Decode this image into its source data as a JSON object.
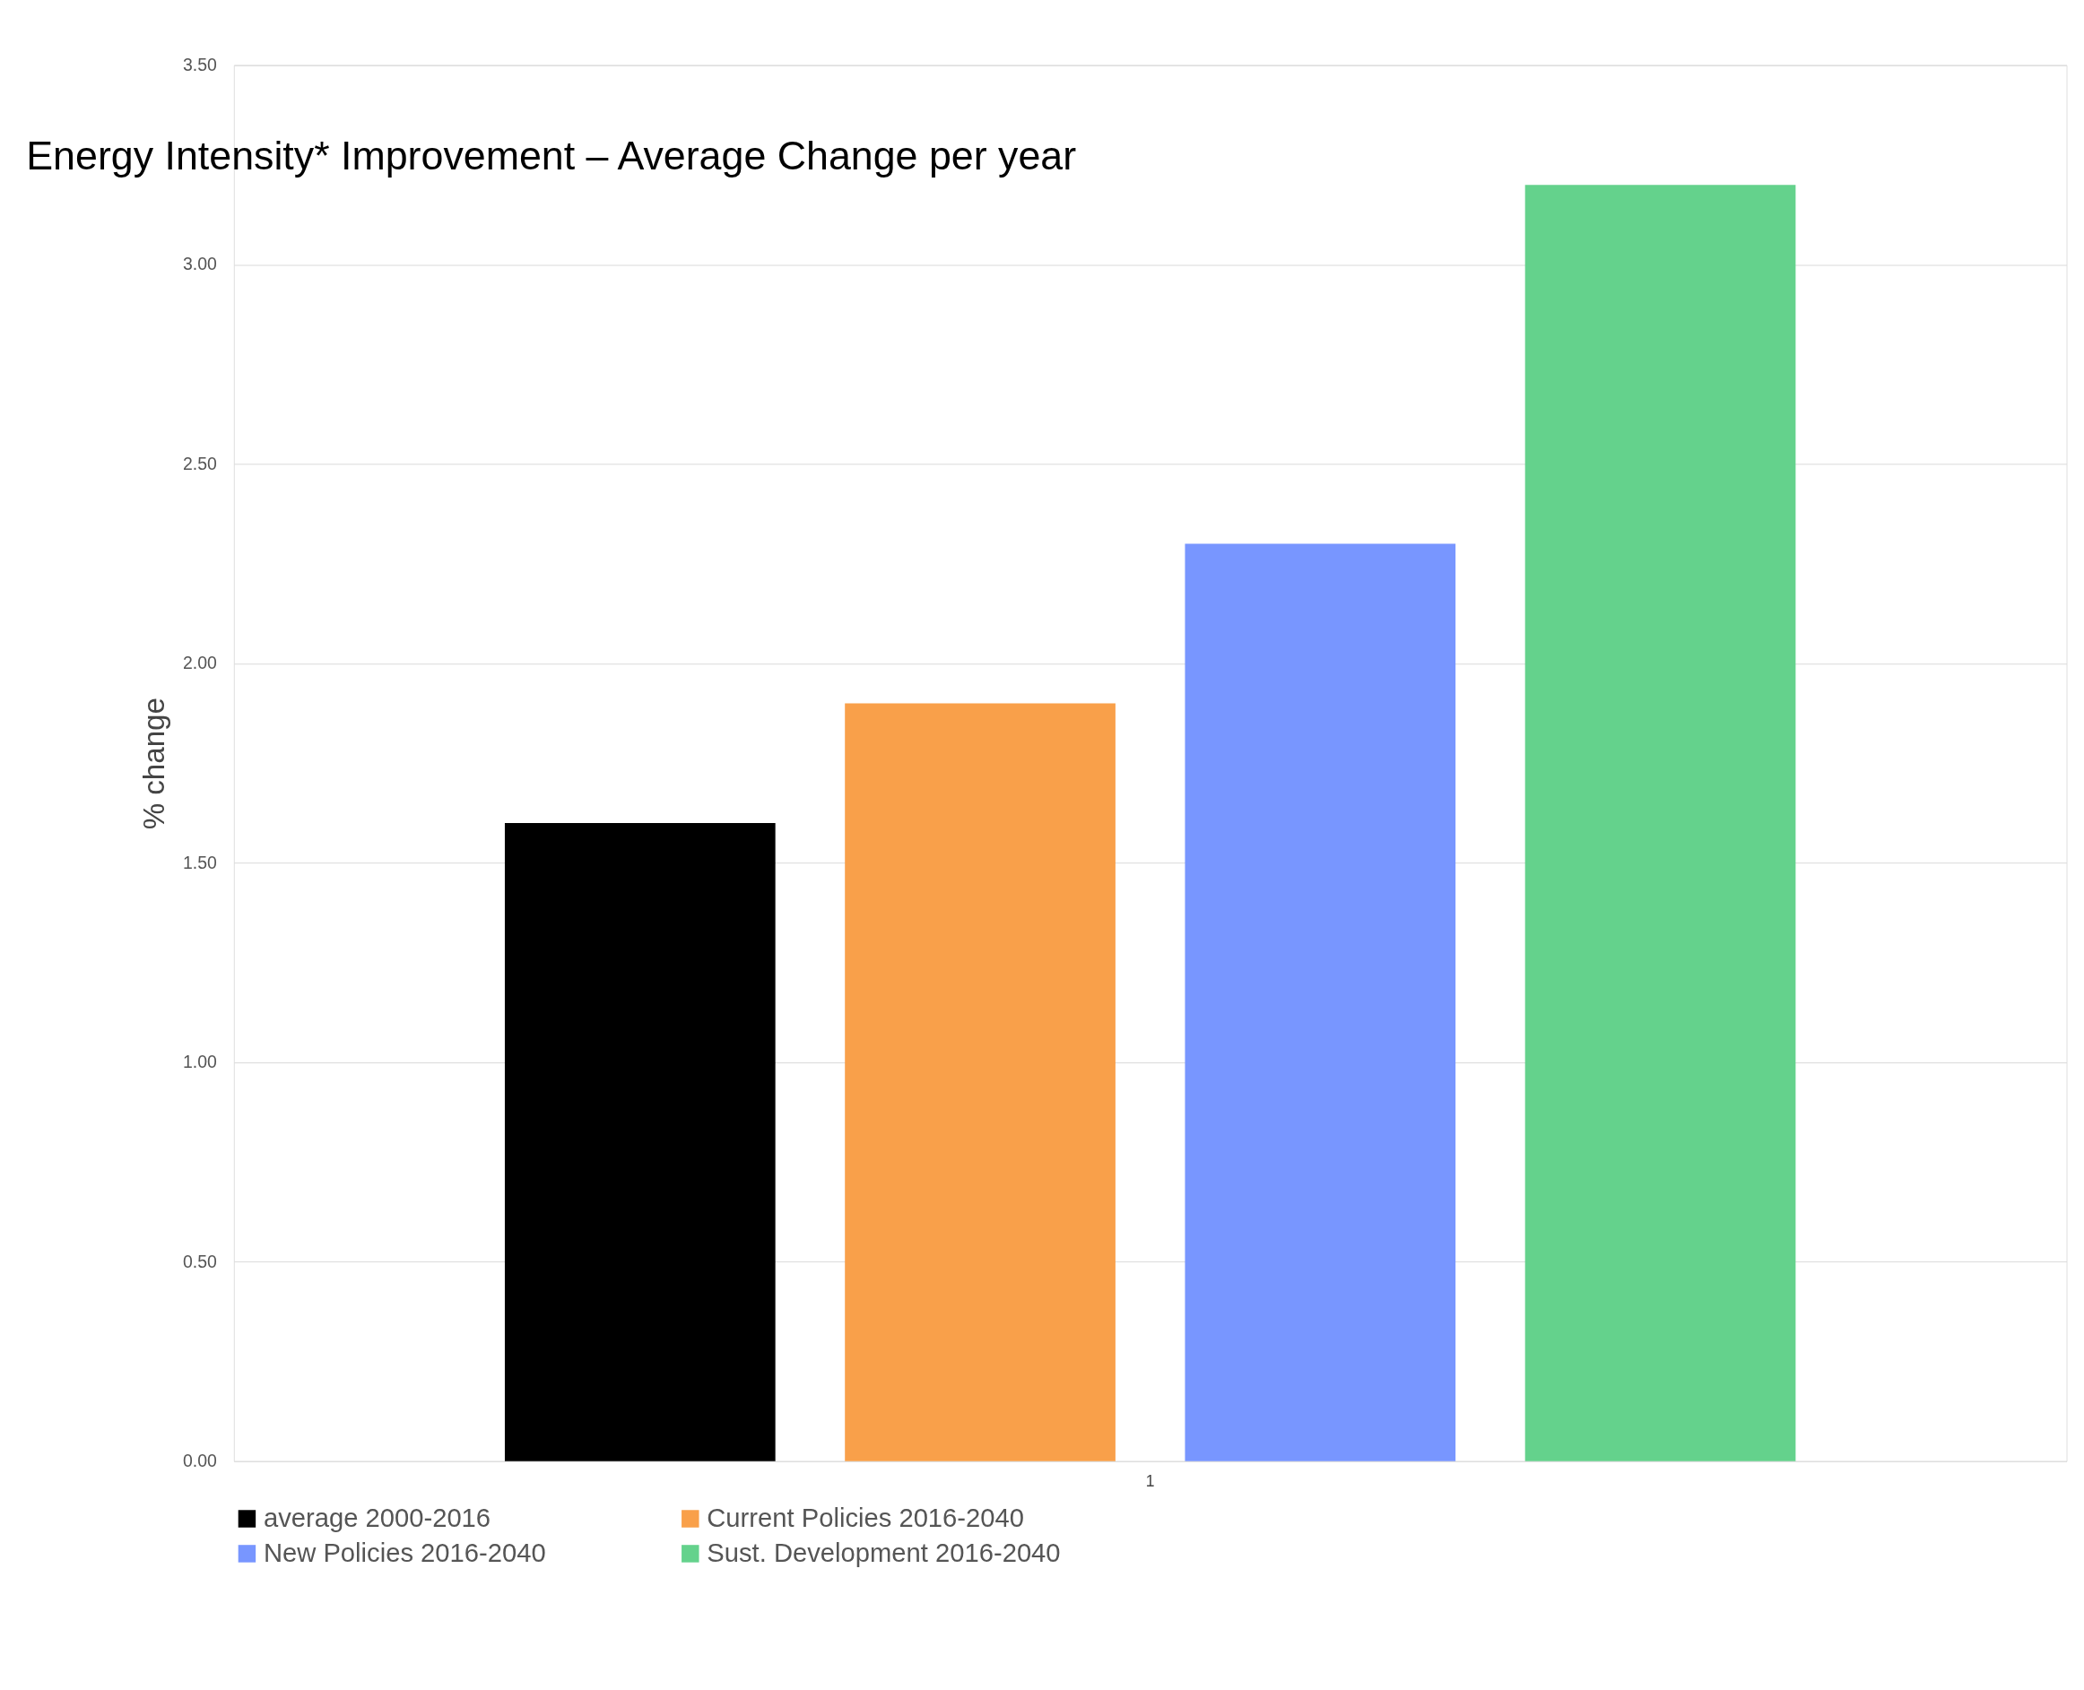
{
  "chart_data": {
    "type": "bar",
    "title": "Energy Intensity* Improvement – Average Change per year",
    "ylabel": "% change",
    "categories": [
      "1"
    ],
    "series": [
      {
        "name": "average 2000-2016",
        "color": "#000000",
        "values": [
          1.6
        ]
      },
      {
        "name": "Current Policies 2016-2040",
        "color": "#f9a04a",
        "values": [
          1.9
        ]
      },
      {
        "name": "New Policies 2016-2040",
        "color": "#7896ff",
        "values": [
          2.3
        ]
      },
      {
        "name": "Sust. Development 2016-2040",
        "color": "#64d28c",
        "values": [
          3.2
        ]
      }
    ],
    "ylim": [
      0,
      3.5
    ],
    "yticks": [
      {
        "value": 0,
        "label": "0.00"
      },
      {
        "value": 0.5,
        "label": "0.50"
      },
      {
        "value": 1,
        "label": "1.00"
      },
      {
        "value": 1.5,
        "label": "1.50"
      },
      {
        "value": 2,
        "label": "2.00"
      },
      {
        "value": 2.5,
        "label": "2.50"
      },
      {
        "value": 3,
        "label": "3.00"
      },
      {
        "value": 3.5,
        "label": "3.50"
      }
    ],
    "grid": "y",
    "legend": "bottom"
  }
}
